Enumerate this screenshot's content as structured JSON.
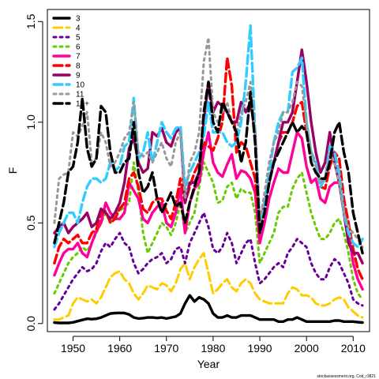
{
  "chart_data": {
    "type": "line",
    "xlabel": "Year",
    "ylabel": "F",
    "xlim": [
      1944.5,
      2013.5
    ],
    "ylim": [
      -0.04,
      1.56
    ],
    "xticks": [
      1950,
      1960,
      1970,
      1980,
      1990,
      2000,
      2010
    ],
    "yticks": [
      0.0,
      0.5,
      1.0,
      1.5
    ],
    "ytick_labels": [
      "0.0",
      "0.5",
      "1.0",
      "1.5"
    ],
    "legend_position": "top-left",
    "source_note": "stockassessment.org, Cod_r3821",
    "x": [
      1946,
      1947,
      1948,
      1949,
      1950,
      1951,
      1952,
      1953,
      1954,
      1955,
      1956,
      1957,
      1958,
      1959,
      1960,
      1961,
      1962,
      1963,
      1964,
      1965,
      1966,
      1967,
      1968,
      1969,
      1970,
      1971,
      1972,
      1973,
      1974,
      1975,
      1976,
      1977,
      1978,
      1979,
      1980,
      1981,
      1982,
      1983,
      1984,
      1985,
      1986,
      1987,
      1988,
      1989,
      1990,
      1991,
      1992,
      1993,
      1994,
      1995,
      1996,
      1997,
      1998,
      1999,
      2000,
      2001,
      2002,
      2003,
      2004,
      2005,
      2006,
      2007,
      2008,
      2009,
      2010,
      2011,
      2012
    ],
    "series": [
      {
        "name": "3",
        "color": "#000000",
        "dash": "solid",
        "width": 3.4,
        "values": [
          0.005,
          0.003,
          0.003,
          0.003,
          0.006,
          0.012,
          0.018,
          0.024,
          0.022,
          0.024,
          0.03,
          0.04,
          0.05,
          0.052,
          0.053,
          0.052,
          0.045,
          0.03,
          0.025,
          0.027,
          0.03,
          0.03,
          0.028,
          0.03,
          0.025,
          0.03,
          0.035,
          0.05,
          0.1,
          0.14,
          0.11,
          0.13,
          0.12,
          0.1,
          0.05,
          0.03,
          0.03,
          0.04,
          0.03,
          0.03,
          0.04,
          0.04,
          0.04,
          0.03,
          0.02,
          0.02,
          0.02,
          0.02,
          0.01,
          0.01,
          0.02,
          0.02,
          0.03,
          0.02,
          0.01,
          0.01,
          0.01,
          0.01,
          0.01,
          0.01,
          0.015,
          0.015,
          0.01,
          0.01,
          0.01,
          0.007,
          0.005
        ]
      },
      {
        "name": "4",
        "color": "#ffcc00",
        "dash": "long",
        "width": 3,
        "values": [
          0.02,
          0.02,
          0.03,
          0.04,
          0.1,
          0.13,
          0.12,
          0.11,
          0.12,
          0.1,
          0.13,
          0.18,
          0.23,
          0.25,
          0.26,
          0.22,
          0.2,
          0.15,
          0.12,
          0.15,
          0.19,
          0.18,
          0.17,
          0.2,
          0.19,
          0.16,
          0.2,
          0.27,
          0.3,
          0.22,
          0.28,
          0.32,
          0.35,
          0.25,
          0.15,
          0.17,
          0.2,
          0.22,
          0.18,
          0.16,
          0.2,
          0.22,
          0.2,
          0.15,
          0.12,
          0.11,
          0.1,
          0.1,
          0.1,
          0.1,
          0.15,
          0.18,
          0.17,
          0.14,
          0.14,
          0.13,
          0.1,
          0.09,
          0.09,
          0.1,
          0.12,
          0.13,
          0.12,
          0.08,
          0.06,
          0.04,
          0.03
        ]
      },
      {
        "name": "5",
        "color": "#660099",
        "dash": "dot",
        "width": 3,
        "values": [
          0.07,
          0.1,
          0.14,
          0.18,
          0.22,
          0.25,
          0.28,
          0.26,
          0.27,
          0.3,
          0.36,
          0.4,
          0.38,
          0.42,
          0.45,
          0.4,
          0.38,
          0.3,
          0.25,
          0.27,
          0.3,
          0.32,
          0.33,
          0.35,
          0.3,
          0.32,
          0.37,
          0.38,
          0.3,
          0.4,
          0.45,
          0.5,
          0.55,
          0.48,
          0.37,
          0.35,
          0.38,
          0.45,
          0.4,
          0.3,
          0.35,
          0.4,
          0.42,
          0.3,
          0.2,
          0.22,
          0.25,
          0.28,
          0.3,
          0.28,
          0.35,
          0.38,
          0.42,
          0.4,
          0.38,
          0.3,
          0.25,
          0.22,
          0.22,
          0.28,
          0.32,
          0.3,
          0.25,
          0.2,
          0.12,
          0.1,
          0.09
        ]
      },
      {
        "name": "6",
        "color": "#66cc00",
        "dash": "dot",
        "width": 3,
        "values": [
          0.15,
          0.2,
          0.25,
          0.3,
          0.33,
          0.35,
          0.38,
          0.36,
          0.4,
          0.45,
          0.5,
          0.55,
          0.5,
          0.55,
          0.56,
          0.58,
          0.6,
          0.8,
          0.65,
          0.45,
          0.35,
          0.4,
          0.45,
          0.5,
          0.48,
          0.44,
          0.5,
          0.6,
          0.45,
          0.5,
          0.55,
          0.68,
          0.8,
          0.75,
          0.7,
          0.6,
          0.61,
          0.68,
          0.7,
          0.62,
          0.67,
          0.65,
          0.65,
          0.55,
          0.3,
          0.35,
          0.4,
          0.45,
          0.55,
          0.58,
          0.58,
          0.67,
          0.72,
          0.75,
          0.65,
          0.55,
          0.48,
          0.42,
          0.42,
          0.45,
          0.5,
          0.52,
          0.45,
          0.35,
          0.22,
          0.15,
          0.12
        ]
      },
      {
        "name": "7",
        "color": "#ff0099",
        "dash": "solid",
        "width": 3.4,
        "values": [
          0.24,
          0.3,
          0.35,
          0.37,
          0.37,
          0.4,
          0.35,
          0.33,
          0.4,
          0.46,
          0.5,
          0.6,
          0.55,
          0.52,
          0.52,
          0.55,
          0.7,
          0.66,
          0.62,
          0.52,
          0.5,
          0.55,
          0.58,
          0.6,
          0.5,
          0.48,
          0.55,
          0.67,
          0.45,
          0.6,
          0.67,
          0.7,
          0.85,
          0.95,
          0.8,
          0.75,
          0.73,
          0.79,
          0.84,
          0.72,
          0.76,
          0.75,
          0.72,
          0.65,
          0.4,
          0.5,
          0.62,
          0.7,
          0.77,
          0.75,
          0.75,
          0.85,
          0.95,
          0.92,
          0.78,
          0.7,
          0.72,
          0.62,
          0.6,
          0.68,
          0.7,
          0.7,
          0.58,
          0.45,
          0.3,
          0.22,
          0.17
        ]
      },
      {
        "name": "8",
        "color": "#ff0000",
        "dash": "long",
        "width": 3.4,
        "values": [
          0.3,
          0.38,
          0.42,
          0.4,
          0.42,
          0.44,
          0.4,
          0.4,
          0.45,
          0.47,
          0.55,
          0.56,
          0.5,
          0.52,
          0.57,
          0.6,
          0.72,
          0.75,
          0.68,
          0.57,
          0.55,
          0.6,
          0.62,
          0.62,
          0.56,
          0.52,
          0.6,
          0.72,
          0.6,
          0.68,
          0.75,
          0.8,
          0.9,
          0.88,
          0.86,
          0.92,
          1.0,
          1.32,
          1.18,
          0.85,
          0.9,
          0.88,
          0.8,
          0.72,
          0.48,
          0.6,
          0.72,
          0.8,
          0.9,
          0.95,
          0.95,
          1.0,
          1.08,
          1.1,
          0.95,
          0.85,
          0.8,
          0.68,
          0.67,
          0.78,
          0.85,
          0.82,
          0.62,
          0.5,
          0.37,
          0.27,
          0.22
        ]
      },
      {
        "name": "9",
        "color": "#990066",
        "dash": "solid",
        "width": 3.4,
        "values": [
          0.45,
          0.48,
          0.5,
          0.45,
          0.48,
          0.5,
          0.52,
          0.55,
          0.48,
          0.5,
          0.57,
          0.55,
          0.52,
          0.55,
          0.6,
          0.7,
          0.87,
          0.92,
          0.8,
          0.75,
          0.77,
          0.95,
          0.93,
          0.97,
          0.9,
          0.88,
          0.95,
          0.97,
          0.6,
          0.7,
          0.7,
          0.75,
          1.0,
          1.2,
          1.05,
          1.1,
          1.08,
          1.05,
          1.0,
          1.0,
          1.1,
          1.05,
          1.1,
          0.95,
          0.5,
          0.6,
          0.7,
          0.8,
          0.9,
          1.0,
          1.0,
          1.05,
          1.2,
          1.36,
          1.2,
          1.0,
          0.85,
          0.75,
          0.8,
          0.95,
          0.8,
          0.7,
          0.55,
          0.4,
          0.35,
          0.35,
          0.3
        ]
      },
      {
        "name": "10",
        "color": "#33ccff",
        "dash": "long",
        "width": 3.4,
        "values": [
          0.38,
          0.45,
          0.5,
          0.55,
          0.55,
          0.5,
          0.6,
          0.68,
          0.72,
          0.72,
          0.7,
          0.72,
          0.8,
          0.76,
          0.78,
          0.88,
          0.9,
          1.12,
          0.82,
          0.85,
          0.95,
          0.8,
          0.9,
          1.0,
          0.95,
          0.92,
          0.97,
          0.98,
          0.68,
          0.75,
          0.8,
          0.85,
          0.93,
          1.1,
          0.95,
          0.95,
          0.95,
          0.9,
          0.88,
          0.9,
          1.0,
          1.2,
          1.48,
          0.95,
          0.5,
          0.6,
          0.75,
          0.9,
          1.0,
          1.05,
          1.05,
          1.25,
          1.27,
          1.32,
          1.0,
          0.85,
          0.8,
          0.68,
          0.72,
          0.88,
          0.85,
          0.75,
          0.55,
          0.45,
          0.4,
          0.38,
          0.42
        ]
      },
      {
        "name": "11",
        "color": "#999999",
        "dash": "dot",
        "width": 3,
        "values": [
          0.5,
          0.72,
          0.74,
          0.75,
          0.95,
          0.93,
          0.98,
          1.05,
          0.8,
          0.82,
          0.95,
          0.9,
          0.78,
          0.8,
          0.85,
          0.92,
          0.95,
          1.1,
          0.85,
          0.83,
          0.85,
          0.8,
          0.85,
          0.9,
          0.82,
          0.78,
          0.9,
          0.95,
          0.62,
          0.8,
          0.85,
          0.95,
          1.3,
          1.42,
          1.05,
          1.0,
          1.05,
          1.1,
          1.0,
          0.95,
          1.05,
          1.1,
          1.2,
          0.95,
          0.5,
          0.65,
          0.8,
          0.9,
          0.95,
          1.05,
          1.05,
          1.1,
          1.2,
          1.18,
          1.0,
          0.85,
          0.78,
          0.7,
          0.72,
          0.85,
          0.8,
          0.7,
          0.55,
          0.48,
          0.45,
          0.42,
          0.38
        ]
      },
      {
        "name": "12+",
        "color": "#000000",
        "dash": "long",
        "width": 3.4,
        "values": [
          0.4,
          0.5,
          0.6,
          0.75,
          0.78,
          0.9,
          1.12,
          0.87,
          0.78,
          0.82,
          1.08,
          1.05,
          0.85,
          0.75,
          0.75,
          0.8,
          0.82,
          1.0,
          0.75,
          0.65,
          0.68,
          0.75,
          0.62,
          0.55,
          0.6,
          0.65,
          0.58,
          0.6,
          0.5,
          0.6,
          0.68,
          0.75,
          1.05,
          1.2,
          1.0,
          0.95,
          1.1,
          1.05,
          1.0,
          0.95,
          0.8,
          0.9,
          1.15,
          0.9,
          0.45,
          0.55,
          0.7,
          0.8,
          0.85,
          0.9,
          0.95,
          1.0,
          0.95,
          0.98,
          0.95,
          0.8,
          0.75,
          0.72,
          0.72,
          0.8,
          0.95,
          1.0,
          0.85,
          0.75,
          0.55,
          0.45,
          0.35
        ]
      }
    ]
  }
}
